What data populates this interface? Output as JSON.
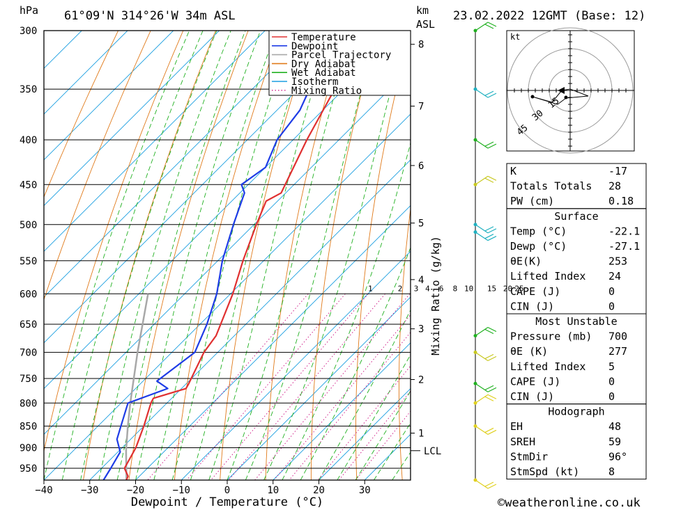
{
  "header": {
    "title": "61°09'N 314°26'W 34m ASL",
    "pressure_unit": "hPa",
    "height_unit_line1": "km",
    "height_unit_line2": "ASL",
    "datetime": "23.02.2022 12GMT (Base: 12)"
  },
  "footer": {
    "copyright": "©weatheronline.co.uk"
  },
  "chart_data": {
    "type": "skew-t",
    "xlabel": "Dewpoint / Temperature (°C)",
    "ylabel_right": "Mixing Ratio (g/kg)",
    "xlim": [
      -40,
      40
    ],
    "ylim_hpa": [
      300,
      980
    ],
    "pressure_ticks": [
      300,
      350,
      400,
      450,
      500,
      550,
      600,
      650,
      700,
      750,
      800,
      850,
      900,
      950
    ],
    "temperature_ticks": [
      -40,
      -30,
      -20,
      -10,
      0,
      10,
      20,
      30
    ],
    "km_ticks": [
      {
        "km": "1",
        "p": 866
      },
      {
        "km": "2",
        "p": 752
      },
      {
        "km": "3",
        "p": 658
      },
      {
        "km": "4",
        "p": 578
      },
      {
        "km": "5",
        "p": 498
      },
      {
        "km": "6",
        "p": 428
      },
      {
        "km": "7",
        "p": 366
      },
      {
        "km": "8",
        "p": 311
      }
    ],
    "lcl": {
      "label": "LCL",
      "p": 907
    },
    "mixing_ratio_labels": [
      {
        "label": "1",
        "x": -9.5
      },
      {
        "label": "2",
        "x": -3
      },
      {
        "label": "3",
        "x": 0.5
      },
      {
        "label": "4",
        "x": 3
      },
      {
        "label": "6",
        "x": 6
      },
      {
        "label": "8",
        "x": 9
      },
      {
        "label": "10",
        "x": 12
      },
      {
        "label": "15",
        "x": 17
      },
      {
        "label": "20",
        "x": 20.5
      },
      {
        "label": "25",
        "x": 23
      }
    ],
    "legend": [
      {
        "name": "Temperature",
        "color": "#e03030",
        "style": "solid"
      },
      {
        "name": "Dewpoint",
        "color": "#1e3ce6",
        "style": "solid"
      },
      {
        "name": "Parcel Trajectory",
        "color": "#a8a8a8",
        "style": "solid"
      },
      {
        "name": "Dry Adiabat",
        "color": "#e07a1a",
        "style": "solid"
      },
      {
        "name": "Wet Adiabat",
        "color": "#20b020",
        "style": "solid"
      },
      {
        "name": "Isotherm",
        "color": "#1a9ee0",
        "style": "solid"
      },
      {
        "name": "Mixing Ratio",
        "color": "#d0208a",
        "style": "dotted"
      }
    ],
    "temperature_profile": [
      {
        "p": 980,
        "t": -22.0
      },
      {
        "p": 970,
        "t": -22.5
      },
      {
        "p": 950,
        "t": -25.0
      },
      {
        "p": 900,
        "t": -27.0
      },
      {
        "p": 850,
        "t": -30.0
      },
      {
        "p": 800,
        "t": -33.5
      },
      {
        "p": 790,
        "t": -34.0
      },
      {
        "p": 770,
        "t": -29.0
      },
      {
        "p": 760,
        "t": -29.5
      },
      {
        "p": 700,
        "t": -33.0
      },
      {
        "p": 670,
        "t": -34.0
      },
      {
        "p": 600,
        "t": -39.5
      },
      {
        "p": 550,
        "t": -44.5
      },
      {
        "p": 500,
        "t": -49.5
      },
      {
        "p": 470,
        "t": -52.5
      },
      {
        "p": 460,
        "t": -51.0
      },
      {
        "p": 400,
        "t": -57.0
      },
      {
        "p": 350,
        "t": -62.0
      },
      {
        "p": 305,
        "t": -67.5
      },
      {
        "p": 300,
        "t": -66.5
      }
    ],
    "dewpoint_profile": [
      {
        "p": 980,
        "t": -27.0
      },
      {
        "p": 950,
        "t": -28.0
      },
      {
        "p": 910,
        "t": -29.5
      },
      {
        "p": 880,
        "t": -33.0
      },
      {
        "p": 850,
        "t": -35.0
      },
      {
        "p": 800,
        "t": -38.5
      },
      {
        "p": 770,
        "t": -33.0
      },
      {
        "p": 755,
        "t": -37.0
      },
      {
        "p": 700,
        "t": -35.0
      },
      {
        "p": 650,
        "t": -38.5
      },
      {
        "p": 600,
        "t": -43.0
      },
      {
        "p": 550,
        "t": -49.0
      },
      {
        "p": 500,
        "t": -54.5
      },
      {
        "p": 460,
        "t": -59.0
      },
      {
        "p": 450,
        "t": -61.5
      },
      {
        "p": 430,
        "t": -60.0
      },
      {
        "p": 400,
        "t": -63.5
      },
      {
        "p": 370,
        "t": -65.0
      },
      {
        "p": 350,
        "t": -67.5
      },
      {
        "p": 300,
        "t": -74.0
      }
    ],
    "parcel_trajectory": [
      {
        "p": 980,
        "t": -22.0
      },
      {
        "p": 907,
        "t": -28.5
      },
      {
        "p": 850,
        "t": -33.5
      },
      {
        "p": 800,
        "t": -38.0
      },
      {
        "p": 700,
        "t": -47.5
      },
      {
        "p": 600,
        "t": -58.0
      }
    ],
    "wind_barbs": [
      {
        "p": 300,
        "color": "#20b020"
      },
      {
        "p": 350,
        "color": "#20b0c0"
      },
      {
        "p": 400,
        "color": "#20b020"
      },
      {
        "p": 450,
        "color": "#c8c820"
      },
      {
        "p": 500,
        "color": "#20b0c0"
      },
      {
        "p": 510,
        "color": "#20b0c0"
      },
      {
        "p": 670,
        "color": "#20b020"
      },
      {
        "p": 700,
        "color": "#c8c820"
      },
      {
        "p": 760,
        "color": "#20b020"
      },
      {
        "p": 800,
        "color": "#e0d020"
      },
      {
        "p": 850,
        "color": "#e0d020"
      },
      {
        "p": 980,
        "color": "#e0d020"
      }
    ],
    "hodograph": {
      "unit": "kt",
      "ring_labels": [
        "15",
        "30",
        "45"
      ]
    }
  },
  "indices": {
    "basic": [
      {
        "label": "K",
        "value": "-17"
      },
      {
        "label": "Totals Totals",
        "value": "28"
      },
      {
        "label": "PW (cm)",
        "value": "0.18"
      }
    ],
    "surface_title": "Surface",
    "surface": [
      {
        "label": "Temp (°C)",
        "value": "-22.1"
      },
      {
        "label": "Dewp (°C)",
        "value": "-27.1"
      },
      {
        "label": "θE(K)",
        "value": "253"
      },
      {
        "label": "Lifted Index",
        "value": "24"
      },
      {
        "label": "CAPE (J)",
        "value": "0"
      },
      {
        "label": "CIN (J)",
        "value": "0"
      }
    ],
    "most_unstable_title": "Most Unstable",
    "most_unstable": [
      {
        "label": "Pressure (mb)",
        "value": "700"
      },
      {
        "label": "θE (K)",
        "value": "277"
      },
      {
        "label": "Lifted Index",
        "value": "5"
      },
      {
        "label": "CAPE (J)",
        "value": "0"
      },
      {
        "label": "CIN (J)",
        "value": "0"
      }
    ],
    "hodograph_title": "Hodograph",
    "hodograph": [
      {
        "label": "EH",
        "value": "48"
      },
      {
        "label": "SREH",
        "value": "59"
      },
      {
        "label": "StmDir",
        "value": "96°"
      },
      {
        "label": "StmSpd (kt)",
        "value": "8"
      }
    ]
  }
}
